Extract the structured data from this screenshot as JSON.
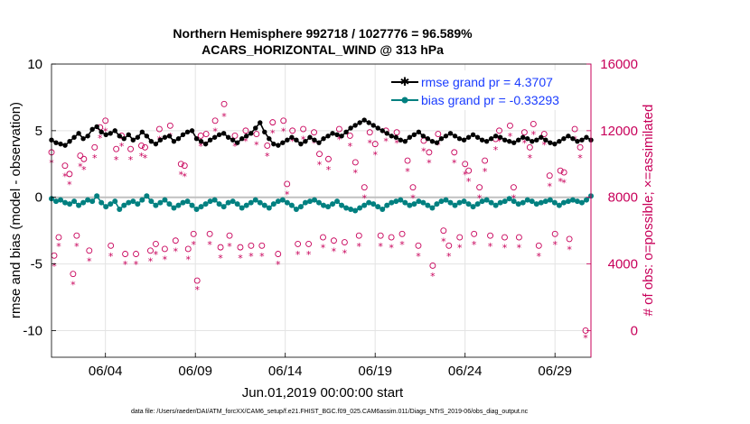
{
  "chart_data": {
    "type": "line",
    "title_line1": "Northern Hemisphere 992718 / 1027776 = 96.589%",
    "title_line2": "ACARS_HORIZONTAL_WIND @ 313 hPa",
    "xlabel": "Jun.01,2019 00:00:00 start",
    "ylabel_left": "rmse and bias (model - observation)",
    "ylabel_right": "# of obs: o=possible; ×=assimilated",
    "footnote": "data file: /Users/raeder/DAI/ATM_forcXX/CAM6_setup/f.e21.FHIST_BGC.f09_025.CAM6assim.011/Diags_NTrS_2019-06/obs_diag_output.nc",
    "x_start_day": 1,
    "x_end_day": 31,
    "x_ticks": [
      {
        "day": 4,
        "label": "06/04"
      },
      {
        "day": 9,
        "label": "06/09"
      },
      {
        "day": 14,
        "label": "06/14"
      },
      {
        "day": 19,
        "label": "06/19"
      },
      {
        "day": 24,
        "label": "06/24"
      },
      {
        "day": 29,
        "label": "06/29"
      }
    ],
    "ylim_left": [
      -12,
      10
    ],
    "yticks_left": [
      {
        "value": 10,
        "label": "10"
      },
      {
        "value": 5,
        "label": "5"
      },
      {
        "value": 0,
        "label": "0"
      },
      {
        "value": -5,
        "label": "-5"
      },
      {
        "value": -10,
        "label": "-10"
      }
    ],
    "ylim_right": [
      -1600,
      16000
    ],
    "yticks_right": [
      {
        "value": 16000,
        "label": "16000"
      },
      {
        "value": 12000,
        "label": "12000"
      },
      {
        "value": 8000,
        "label": "8000"
      },
      {
        "value": 4000,
        "label": "4000"
      },
      {
        "value": 0,
        "label": "0"
      }
    ],
    "grid": true,
    "legend_position": "top-right",
    "series": [
      {
        "name": "rmse grand pr = 4.3707",
        "color": "#000000",
        "marker": "star",
        "values": [
          4.3,
          4.1,
          4.0,
          3.9,
          4.2,
          4.5,
          4.8,
          4.4,
          4.6,
          5.1,
          5.3,
          4.9,
          4.7,
          4.8,
          5.0,
          4.6,
          4.4,
          4.7,
          4.3,
          4.5,
          4.9,
          4.6,
          4.2,
          4.0,
          4.3,
          4.5,
          4.6,
          4.2,
          4.4,
          4.7,
          4.9,
          5.0,
          4.4,
          4.2,
          4.0,
          4.3,
          4.5,
          4.7,
          4.8,
          4.5,
          4.3,
          4.1,
          4.4,
          4.6,
          4.8,
          5.2,
          5.6,
          4.9,
          4.4,
          4.0,
          3.9,
          4.1,
          4.3,
          4.5,
          4.3,
          4.0,
          4.2,
          4.5,
          4.3,
          4.1,
          4.4,
          4.6,
          4.8,
          4.7,
          4.6,
          4.9,
          5.2,
          5.4,
          5.6,
          5.8,
          5.6,
          5.4,
          5.2,
          5.0,
          4.8,
          4.6,
          4.5,
          4.3,
          4.2,
          4.5,
          4.7,
          4.9,
          4.6,
          4.4,
          4.2,
          4.1,
          4.4,
          4.6,
          4.8,
          4.6,
          4.4,
          4.3,
          4.5,
          4.7,
          4.5,
          4.3,
          4.2,
          4.4,
          4.6,
          4.5,
          4.3,
          4.2,
          4.1,
          4.3,
          4.5,
          4.4,
          4.2,
          4.3,
          4.5,
          4.3,
          4.1,
          4.0,
          4.2,
          4.4,
          4.6,
          4.4,
          4.2,
          4.3,
          4.5,
          4.3
        ]
      },
      {
        "name": "bias grand pr = -0.33293",
        "color": "#008080",
        "marker": "dot",
        "values": [
          -0.1,
          -0.3,
          -0.2,
          -0.4,
          -0.5,
          -0.3,
          -0.6,
          -0.4,
          -0.2,
          -0.3,
          0.1,
          -0.4,
          -0.7,
          -0.5,
          -0.3,
          -0.9,
          -0.6,
          -0.4,
          -0.3,
          -0.5,
          -0.2,
          0.1,
          -0.3,
          -0.6,
          -0.4,
          -0.2,
          -0.5,
          -0.8,
          -0.6,
          -0.4,
          -0.3,
          -0.6,
          -0.9,
          -0.7,
          -0.5,
          -0.3,
          -0.2,
          -0.5,
          -0.7,
          -0.4,
          -0.3,
          -0.5,
          -0.8,
          -0.6,
          -0.4,
          -0.2,
          -0.4,
          -0.6,
          -0.8,
          -0.5,
          -0.3,
          -0.2,
          -0.4,
          -0.6,
          -0.9,
          -0.7,
          -0.4,
          -0.3,
          -0.2,
          -0.4,
          -0.6,
          -0.7,
          -0.5,
          -0.3,
          -0.6,
          -0.8,
          -0.9,
          -1.0,
          -0.8,
          -0.6,
          -0.4,
          -0.5,
          -0.7,
          -0.9,
          -0.6,
          -0.4,
          -0.3,
          -0.2,
          -0.4,
          -0.6,
          -0.5,
          -0.3,
          -0.4,
          -0.6,
          -0.8,
          -0.5,
          -0.3,
          -0.2,
          -0.4,
          -0.6,
          -0.4,
          -0.3,
          -0.5,
          -0.7,
          -0.5,
          -0.3,
          -0.2,
          -0.4,
          -0.6,
          -0.4,
          -0.3,
          -0.1,
          -0.3,
          -0.5,
          -0.4,
          -0.2,
          -0.3,
          -0.5,
          -0.4,
          -0.3,
          -0.2,
          -0.4,
          -0.6,
          -0.4,
          -0.3,
          -0.2,
          -0.3,
          -0.4,
          -0.2,
          0.1
        ]
      },
      {
        "name": "possible obs",
        "color": "#c8005a",
        "marker": "circle",
        "axis": "right",
        "day_values": [
          [
            1.0,
            10700
          ],
          [
            1.15,
            4500
          ],
          [
            1.4,
            5600
          ],
          [
            1.75,
            9900
          ],
          [
            2.0,
            9400
          ],
          [
            2.2,
            3400
          ],
          [
            2.4,
            5700
          ],
          [
            2.6,
            10500
          ],
          [
            2.8,
            10300
          ],
          [
            3.1,
            4800
          ],
          [
            3.4,
            11000
          ],
          [
            3.7,
            12200
          ],
          [
            4.0,
            12600
          ],
          [
            4.3,
            5100
          ],
          [
            4.6,
            10900
          ],
          [
            4.9,
            11700
          ],
          [
            5.1,
            4600
          ],
          [
            5.4,
            10900
          ],
          [
            5.7,
            4600
          ],
          [
            6.0,
            11100
          ],
          [
            6.2,
            11000
          ],
          [
            6.5,
            4800
          ],
          [
            6.8,
            5200
          ],
          [
            7.0,
            12100
          ],
          [
            7.3,
            4900
          ],
          [
            7.6,
            12300
          ],
          [
            7.9,
            5400
          ],
          [
            8.2,
            10000
          ],
          [
            8.4,
            9900
          ],
          [
            8.6,
            4900
          ],
          [
            8.9,
            5800
          ],
          [
            9.1,
            3000
          ],
          [
            9.3,
            11700
          ],
          [
            9.6,
            11800
          ],
          [
            9.8,
            5800
          ],
          [
            10.1,
            12600
          ],
          [
            10.4,
            5000
          ],
          [
            10.6,
            13600
          ],
          [
            10.9,
            5700
          ],
          [
            11.2,
            11700
          ],
          [
            11.5,
            5000
          ],
          [
            11.8,
            12000
          ],
          [
            12.1,
            5100
          ],
          [
            12.4,
            11800
          ],
          [
            12.7,
            5100
          ],
          [
            13.0,
            11100
          ],
          [
            13.3,
            12500
          ],
          [
            13.6,
            4600
          ],
          [
            13.9,
            12600
          ],
          [
            14.1,
            8800
          ],
          [
            14.4,
            12000
          ],
          [
            14.7,
            5200
          ],
          [
            15.0,
            12100
          ],
          [
            15.3,
            5200
          ],
          [
            15.6,
            11900
          ],
          [
            15.9,
            10600
          ],
          [
            16.1,
            5600
          ],
          [
            16.4,
            10300
          ],
          [
            16.7,
            5400
          ],
          [
            17.0,
            12100
          ],
          [
            17.3,
            5300
          ],
          [
            17.6,
            11700
          ],
          [
            17.9,
            10100
          ],
          [
            18.1,
            5700
          ],
          [
            18.4,
            8600
          ],
          [
            18.7,
            11900
          ],
          [
            19.0,
            11200
          ],
          [
            19.3,
            5700
          ],
          [
            19.6,
            12000
          ],
          [
            19.9,
            5600
          ],
          [
            20.2,
            11900
          ],
          [
            20.5,
            5800
          ],
          [
            20.8,
            10200
          ],
          [
            21.1,
            8600
          ],
          [
            21.4,
            5100
          ],
          [
            21.7,
            11400
          ],
          [
            22.0,
            10700
          ],
          [
            22.2,
            3900
          ],
          [
            22.5,
            11800
          ],
          [
            22.8,
            6000
          ],
          [
            23.1,
            5100
          ],
          [
            23.4,
            10700
          ],
          [
            23.7,
            5600
          ],
          [
            24.0,
            10000
          ],
          [
            24.2,
            9600
          ],
          [
            24.5,
            5800
          ],
          [
            24.8,
            8600
          ],
          [
            25.1,
            10200
          ],
          [
            25.4,
            5700
          ],
          [
            25.7,
            11500
          ],
          [
            25.9,
            12000
          ],
          [
            26.2,
            5600
          ],
          [
            26.5,
            12300
          ],
          [
            26.7,
            8600
          ],
          [
            27.0,
            5600
          ],
          [
            27.3,
            11900
          ],
          [
            27.6,
            11000
          ],
          [
            27.8,
            12400
          ],
          [
            28.1,
            5100
          ],
          [
            28.4,
            11800
          ],
          [
            28.7,
            9300
          ],
          [
            29.0,
            5800
          ],
          [
            29.3,
            9600
          ],
          [
            29.5,
            9500
          ],
          [
            29.8,
            5500
          ],
          [
            30.1,
            12100
          ],
          [
            30.4,
            11000
          ],
          [
            30.7,
            0
          ]
        ]
      },
      {
        "name": "assimilated obs",
        "color": "#c8005a",
        "marker": "star",
        "axis": "right",
        "day_values": [
          [
            1.0,
            10500
          ],
          [
            1.15,
            4300
          ],
          [
            1.4,
            5500
          ],
          [
            1.75,
            9700
          ],
          [
            2.0,
            9200
          ],
          [
            2.2,
            3200
          ],
          [
            2.4,
            5500
          ],
          [
            2.6,
            10300
          ],
          [
            2.8,
            10100
          ],
          [
            3.1,
            4600
          ],
          [
            3.4,
            10800
          ],
          [
            3.7,
            12000
          ],
          [
            4.0,
            12400
          ],
          [
            4.3,
            4900
          ],
          [
            4.6,
            10700
          ],
          [
            4.9,
            11500
          ],
          [
            5.1,
            4400
          ],
          [
            5.4,
            10700
          ],
          [
            5.7,
            4400
          ],
          [
            6.0,
            10900
          ],
          [
            6.2,
            10800
          ],
          [
            6.5,
            4600
          ],
          [
            6.8,
            5000
          ],
          [
            7.0,
            11900
          ],
          [
            7.3,
            4700
          ],
          [
            7.6,
            12100
          ],
          [
            7.9,
            5200
          ],
          [
            8.2,
            9800
          ],
          [
            8.4,
            9700
          ],
          [
            8.6,
            4700
          ],
          [
            8.9,
            5600
          ],
          [
            9.1,
            2900
          ],
          [
            9.3,
            11500
          ],
          [
            9.6,
            11600
          ],
          [
            9.8,
            5600
          ],
          [
            10.1,
            12400
          ],
          [
            10.4,
            4800
          ],
          [
            10.6,
            13300
          ],
          [
            10.9,
            5500
          ],
          [
            11.2,
            11500
          ],
          [
            11.5,
            4800
          ],
          [
            11.8,
            11800
          ],
          [
            12.1,
            4900
          ],
          [
            12.4,
            11600
          ],
          [
            12.7,
            4900
          ],
          [
            13.0,
            10900
          ],
          [
            13.3,
            12300
          ],
          [
            13.6,
            4400
          ],
          [
            13.9,
            12400
          ],
          [
            14.1,
            8600
          ],
          [
            14.4,
            11800
          ],
          [
            14.7,
            5000
          ],
          [
            15.0,
            11900
          ],
          [
            15.3,
            5000
          ],
          [
            15.6,
            11700
          ],
          [
            15.9,
            10400
          ],
          [
            16.1,
            5400
          ],
          [
            16.4,
            10100
          ],
          [
            16.7,
            5200
          ],
          [
            17.0,
            11900
          ],
          [
            17.3,
            5100
          ],
          [
            17.6,
            11500
          ],
          [
            17.9,
            9900
          ],
          [
            18.1,
            5500
          ],
          [
            18.4,
            8400
          ],
          [
            18.7,
            11700
          ],
          [
            19.0,
            11000
          ],
          [
            19.3,
            5500
          ],
          [
            19.6,
            11800
          ],
          [
            19.9,
            5400
          ],
          [
            20.2,
            11700
          ],
          [
            20.5,
            5600
          ],
          [
            20.8,
            10000
          ],
          [
            21.1,
            8400
          ],
          [
            21.4,
            4900
          ],
          [
            21.7,
            11200
          ],
          [
            22.0,
            10500
          ],
          [
            22.2,
            3700
          ],
          [
            22.5,
            11600
          ],
          [
            22.8,
            5800
          ],
          [
            23.1,
            4900
          ],
          [
            23.4,
            10500
          ],
          [
            23.7,
            5400
          ],
          [
            24.0,
            9800
          ],
          [
            24.2,
            9400
          ],
          [
            24.5,
            5600
          ],
          [
            24.8,
            8400
          ],
          [
            25.1,
            10000
          ],
          [
            25.4,
            5500
          ],
          [
            25.7,
            11300
          ],
          [
            25.9,
            11800
          ],
          [
            26.2,
            5400
          ],
          [
            26.5,
            12100
          ],
          [
            26.7,
            8400
          ],
          [
            27.0,
            5400
          ],
          [
            27.3,
            11700
          ],
          [
            27.6,
            10800
          ],
          [
            27.8,
            12200
          ],
          [
            28.1,
            4900
          ],
          [
            28.4,
            11600
          ],
          [
            28.7,
            9100
          ],
          [
            29.0,
            5600
          ],
          [
            29.3,
            9400
          ],
          [
            29.5,
            9300
          ],
          [
            29.8,
            5300
          ],
          [
            30.1,
            11900
          ],
          [
            30.4,
            10800
          ],
          [
            30.7,
            0
          ]
        ]
      }
    ]
  }
}
